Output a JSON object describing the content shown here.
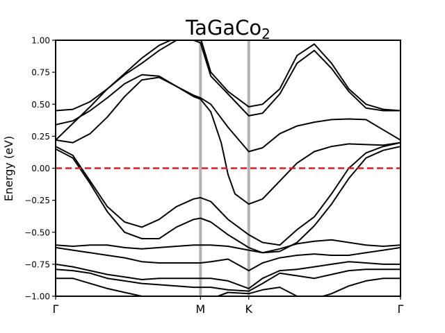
{
  "chart_data": {
    "type": "line",
    "title": "TaGaCo",
    "title_subscript": "2",
    "ylabel": "Energy (eV)",
    "xlabel": "",
    "x_range": [
      0,
      1
    ],
    "ylim": [
      -1.0,
      1.0
    ],
    "y_ticks": [
      "1.00",
      "0.75",
      "0.50",
      "0.25",
      "0.00",
      "−0.25",
      "−0.50",
      "−0.75",
      "−1.00"
    ],
    "y_tick_values": [
      1.0,
      0.75,
      0.5,
      0.25,
      0.0,
      -0.25,
      -0.5,
      -0.75,
      -1.0
    ],
    "kpoints": [
      {
        "label": "Γ",
        "x": 0.0
      },
      {
        "label": "M",
        "x": 0.42
      },
      {
        "label": "K",
        "x": 0.56
      },
      {
        "label": "Γ",
        "x": 1.0
      }
    ],
    "fermi_level": 0.0,
    "colors": {
      "bands": "#000000",
      "fermi": "#e41a1c",
      "kpoint_lines": "#b3b3b3"
    },
    "grid": false,
    "series": [
      {
        "x": [
          0,
          0.05,
          0.1,
          0.15,
          0.2,
          0.25,
          0.3,
          0.35,
          0.4,
          0.42,
          0.45,
          0.5,
          0.56,
          0.6,
          0.65,
          0.7,
          0.75,
          0.8,
          0.85,
          0.9,
          0.95,
          1.0
        ],
        "y": [
          0.45,
          0.46,
          0.52,
          0.62,
          0.74,
          0.86,
          0.96,
          1.02,
          1.03,
          1.02,
          0.75,
          0.6,
          0.48,
          0.5,
          0.62,
          0.88,
          0.97,
          0.82,
          0.62,
          0.5,
          0.46,
          0.45
        ]
      },
      {
        "x": [
          0,
          0.05,
          0.1,
          0.15,
          0.2,
          0.25,
          0.3,
          0.35,
          0.38,
          0.42,
          0.45,
          0.5,
          0.56,
          0.6,
          0.65,
          0.7,
          0.75,
          0.8,
          0.85,
          0.9,
          0.95,
          1.0
        ],
        "y": [
          0.22,
          0.35,
          0.48,
          0.62,
          0.73,
          0.82,
          0.92,
          1.0,
          1.02,
          0.98,
          0.72,
          0.58,
          0.41,
          0.43,
          0.58,
          0.82,
          0.92,
          0.78,
          0.6,
          0.47,
          0.45,
          0.45
        ]
      },
      {
        "x": [
          0,
          0.05,
          0.1,
          0.15,
          0.2,
          0.25,
          0.3,
          0.35,
          0.4,
          0.42,
          0.45,
          0.5,
          0.56,
          0.6,
          0.65,
          0.7,
          0.75,
          0.8,
          0.85,
          0.9,
          0.95,
          1.0
        ],
        "y": [
          0.34,
          0.37,
          0.45,
          0.55,
          0.66,
          0.73,
          0.72,
          0.64,
          0.57,
          0.55,
          0.5,
          0.32,
          0.13,
          0.16,
          0.27,
          0.33,
          0.36,
          0.38,
          0.385,
          0.38,
          0.3,
          0.22
        ]
      },
      {
        "x": [
          0,
          0.05,
          0.1,
          0.15,
          0.2,
          0.25,
          0.3,
          0.35,
          0.4,
          0.42,
          0.45,
          0.48,
          0.5,
          0.52,
          0.56,
          0.6,
          0.65,
          0.7,
          0.75,
          0.8,
          0.85,
          0.9,
          0.95,
          1.0
        ],
        "y": [
          0.22,
          0.2,
          0.27,
          0.4,
          0.56,
          0.69,
          0.71,
          0.64,
          0.56,
          0.54,
          0.44,
          0.2,
          -0.05,
          -0.2,
          -0.28,
          -0.24,
          -0.1,
          0.04,
          0.13,
          0.17,
          0.19,
          0.185,
          0.18,
          0.2
        ]
      },
      {
        "x": [
          0,
          0.05,
          0.1,
          0.15,
          0.2,
          0.25,
          0.3,
          0.35,
          0.4,
          0.42,
          0.45,
          0.5,
          0.56,
          0.6,
          0.65,
          0.7,
          0.75,
          0.8,
          0.85,
          0.9,
          0.95,
          1.0
        ],
        "y": [
          0.17,
          0.1,
          -0.1,
          -0.3,
          -0.42,
          -0.46,
          -0.4,
          -0.3,
          -0.24,
          -0.23,
          -0.26,
          -0.4,
          -0.52,
          -0.58,
          -0.6,
          -0.48,
          -0.38,
          -0.2,
          0.0,
          0.12,
          0.17,
          0.2
        ]
      },
      {
        "x": [
          0,
          0.05,
          0.1,
          0.15,
          0.2,
          0.25,
          0.3,
          0.35,
          0.4,
          0.42,
          0.45,
          0.5,
          0.56,
          0.6,
          0.65,
          0.7,
          0.75,
          0.8,
          0.85,
          0.9,
          0.95,
          1.0
        ],
        "y": [
          0.15,
          0.08,
          -0.12,
          -0.34,
          -0.5,
          -0.55,
          -0.55,
          -0.46,
          -0.4,
          -0.39,
          -0.42,
          -0.52,
          -0.62,
          -0.66,
          -0.65,
          -0.58,
          -0.45,
          -0.28,
          -0.08,
          0.08,
          0.14,
          0.17
        ]
      },
      {
        "x": [
          0,
          0.05,
          0.1,
          0.15,
          0.2,
          0.25,
          0.3,
          0.35,
          0.4,
          0.42,
          0.45,
          0.5,
          0.56,
          0.6,
          0.65,
          0.7,
          0.75,
          0.8,
          0.85,
          0.9,
          0.95,
          1.0
        ],
        "y": [
          -0.6,
          -0.61,
          -0.6,
          -0.6,
          -0.62,
          -0.63,
          -0.62,
          -0.61,
          -0.6,
          -0.6,
          -0.6,
          -0.61,
          -0.64,
          -0.66,
          -0.63,
          -0.59,
          -0.57,
          -0.56,
          -0.58,
          -0.6,
          -0.61,
          -0.6
        ]
      },
      {
        "x": [
          0,
          0.05,
          0.1,
          0.15,
          0.2,
          0.25,
          0.3,
          0.35,
          0.4,
          0.42,
          0.45,
          0.5,
          0.56,
          0.6,
          0.65,
          0.7,
          0.75,
          0.8,
          0.85,
          0.9,
          0.95,
          1.0
        ],
        "y": [
          -0.62,
          -0.64,
          -0.66,
          -0.68,
          -0.7,
          -0.73,
          -0.74,
          -0.74,
          -0.74,
          -0.74,
          -0.73,
          -0.71,
          -0.8,
          -0.74,
          -0.7,
          -0.68,
          -0.67,
          -0.68,
          -0.68,
          -0.66,
          -0.64,
          -0.62
        ]
      },
      {
        "x": [
          0,
          0.05,
          0.1,
          0.15,
          0.2,
          0.25,
          0.3,
          0.35,
          0.4,
          0.42,
          0.45,
          0.5,
          0.56,
          0.6,
          0.65,
          0.7,
          0.75,
          0.8,
          0.85,
          0.9,
          0.95,
          1.0
        ],
        "y": [
          -0.75,
          -0.77,
          -0.8,
          -0.83,
          -0.85,
          -0.87,
          -0.86,
          -0.86,
          -0.86,
          -0.86,
          -0.86,
          -0.88,
          -0.94,
          -0.86,
          -0.8,
          -0.79,
          -0.77,
          -0.75,
          -0.73,
          -0.74,
          -0.75,
          -0.75
        ]
      },
      {
        "x": [
          0,
          0.05,
          0.1,
          0.15,
          0.2,
          0.25,
          0.3,
          0.35,
          0.4,
          0.42,
          0.45,
          0.5,
          0.56,
          0.6,
          0.65,
          0.7,
          0.75,
          0.8,
          0.85,
          0.9,
          0.95,
          1.0
        ],
        "y": [
          -0.79,
          -0.8,
          -0.82,
          -0.86,
          -0.88,
          -0.9,
          -0.91,
          -0.92,
          -0.93,
          -0.93,
          -0.93,
          -0.95,
          -0.96,
          -0.9,
          -0.82,
          -0.84,
          -0.86,
          -0.83,
          -0.8,
          -0.79,
          -0.79,
          -0.79
        ]
      },
      {
        "x": [
          0,
          0.05,
          0.1,
          0.15,
          0.2,
          0.25,
          0.28,
          0.45,
          0.5,
          0.56,
          0.6,
          0.65,
          0.7,
          0.75,
          0.8,
          0.85,
          0.9,
          0.95,
          1.0
        ],
        "y": [
          -0.86,
          -0.86,
          -0.9,
          -0.94,
          -0.97,
          -1.0,
          -1.02,
          -1.02,
          -0.97,
          -0.98,
          -0.95,
          -0.93,
          -1.0,
          -1.02,
          -0.98,
          -0.92,
          -0.88,
          -0.86,
          -0.86
        ]
      }
    ]
  }
}
